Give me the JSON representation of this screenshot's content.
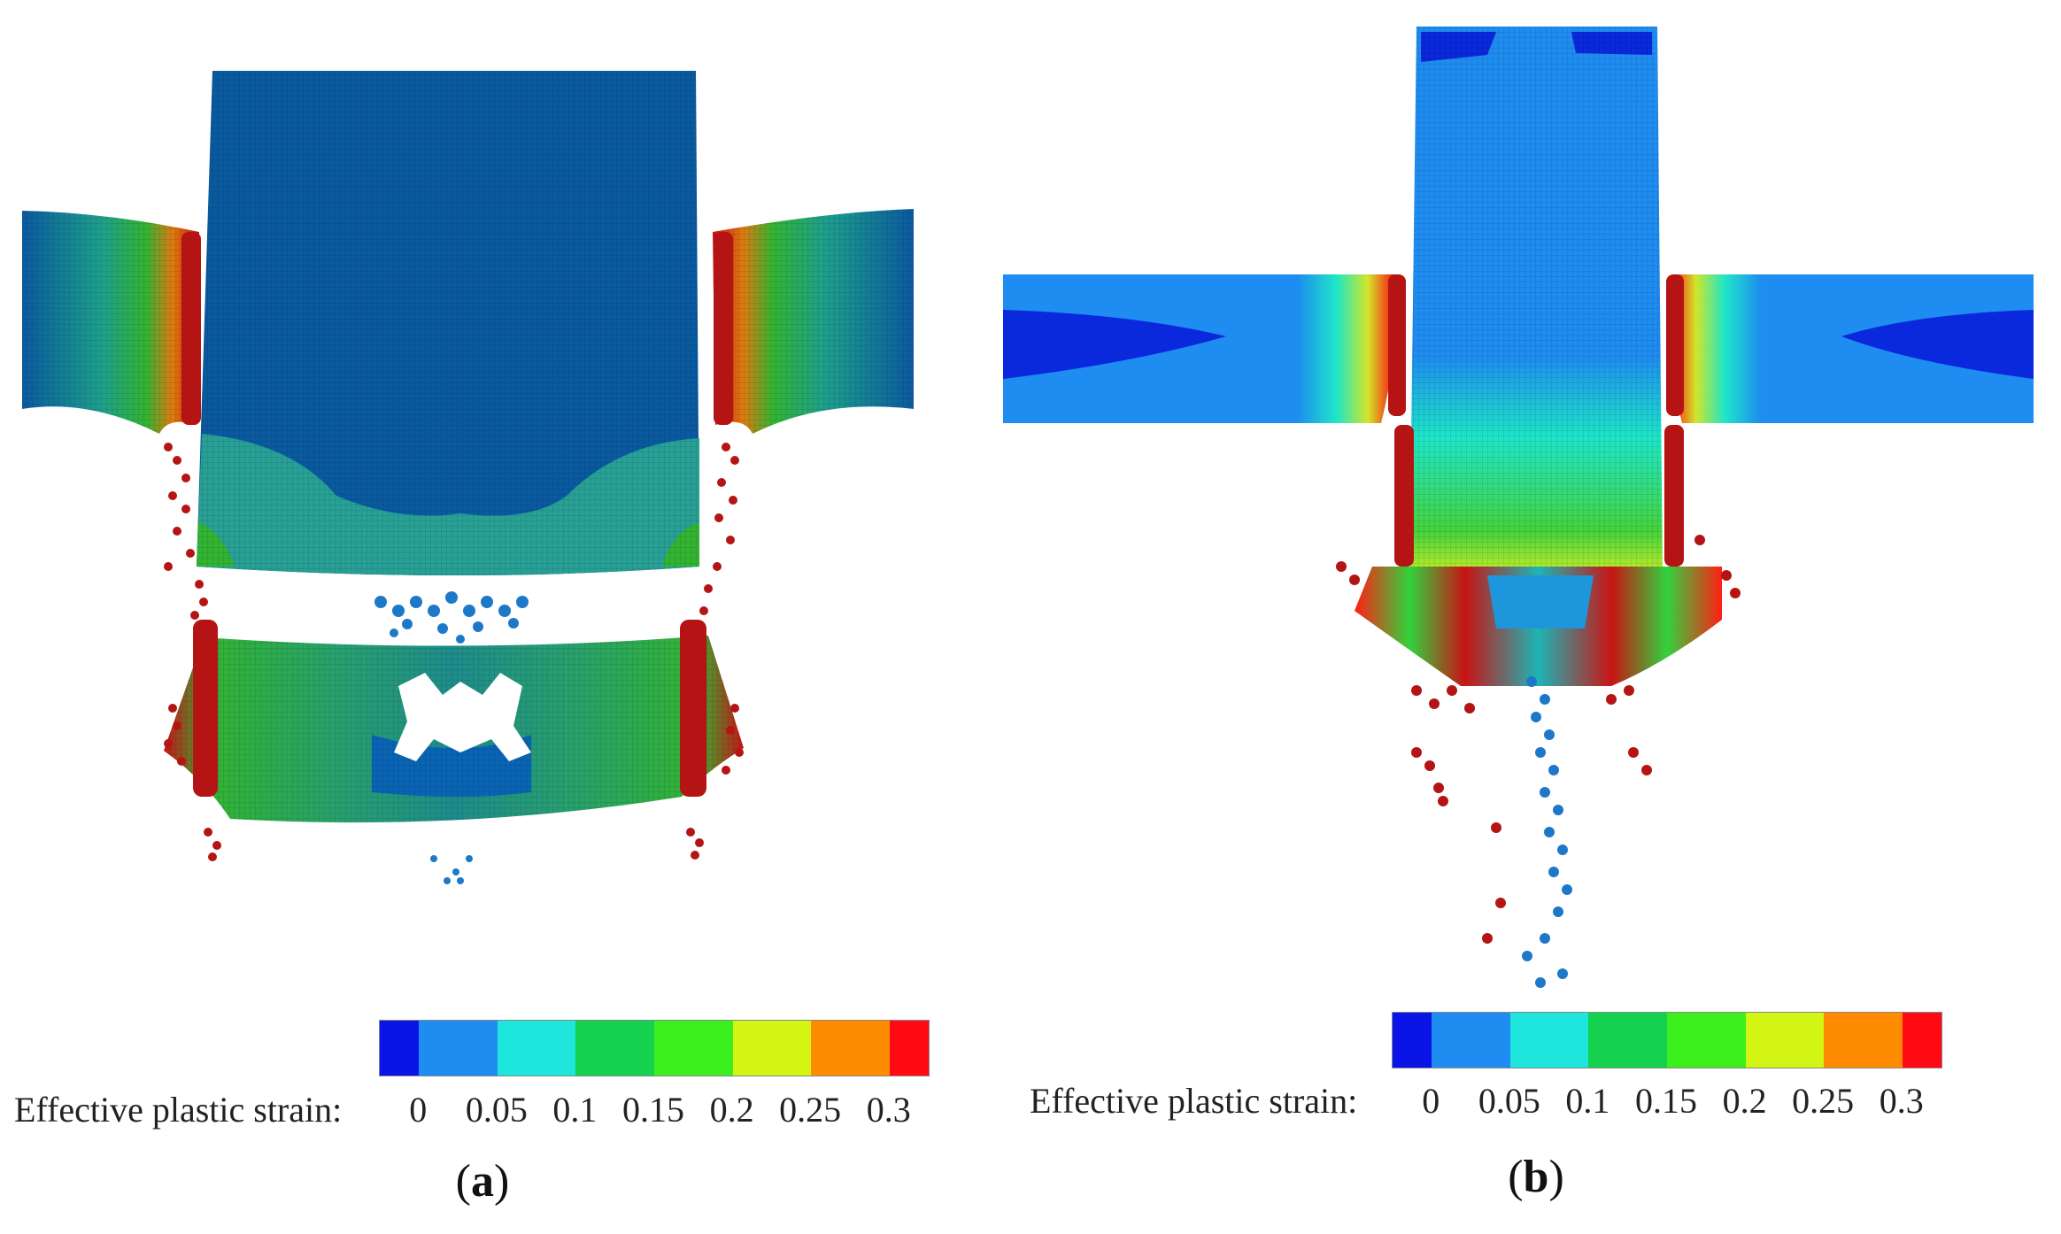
{
  "figure": {
    "panels": [
      {
        "id": "a",
        "label_open": "(",
        "label_letter": "a",
        "label_close": ")"
      },
      {
        "id": "b",
        "label_open": "(",
        "label_letter": "b",
        "label_close": ")"
      }
    ],
    "colorbar": {
      "title": "Effective plastic strain:",
      "ticks": [
        "0",
        "0.05",
        "0.1",
        "0.15",
        "0.2",
        "0.25",
        "0.3"
      ],
      "colors": [
        "#0a14e6",
        "#1e8cf0",
        "#1ee6dc",
        "#14d250",
        "#3cf01e",
        "#d2f514",
        "#ff8c00",
        "#ff0a14"
      ]
    },
    "colors": {
      "low": "#0a5aa0",
      "mid_cyan": "#1ec8b4",
      "green": "#32b432",
      "red": "#c81414",
      "blue_light": "#1e8cf0"
    }
  }
}
